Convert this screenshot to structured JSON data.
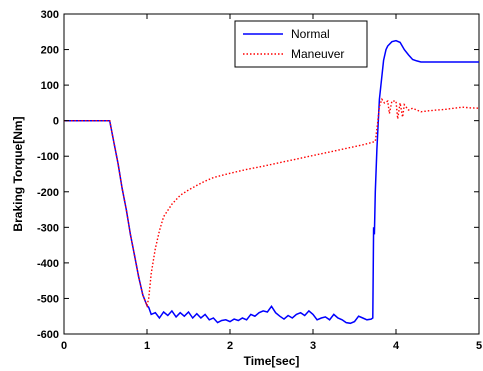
{
  "chart_data": {
    "type": "line",
    "title": "",
    "xlabel": "Time[sec]",
    "ylabel": "Braking Torque[Nm]",
    "xlim": [
      0,
      5
    ],
    "ylim": [
      -600,
      300
    ],
    "xticks": [
      0,
      1,
      2,
      3,
      4,
      5
    ],
    "yticks": [
      -600,
      -500,
      -400,
      -300,
      -200,
      -100,
      0,
      100,
      200,
      300
    ],
    "grid": false,
    "legend_position": "top-right",
    "series": [
      {
        "name": "Normal",
        "color": "#0000ff",
        "style": "solid",
        "points": [
          [
            0,
            0
          ],
          [
            0.5,
            0
          ],
          [
            0.55,
            0
          ],
          [
            0.6,
            -60
          ],
          [
            0.65,
            -120
          ],
          [
            0.7,
            -190
          ],
          [
            0.75,
            -250
          ],
          [
            0.8,
            -320
          ],
          [
            0.85,
            -380
          ],
          [
            0.9,
            -440
          ],
          [
            0.95,
            -490
          ],
          [
            1.0,
            -520
          ],
          [
            1.02,
            -525
          ],
          [
            1.05,
            -545
          ],
          [
            1.1,
            -540
          ],
          [
            1.15,
            -555
          ],
          [
            1.2,
            -538
          ],
          [
            1.25,
            -548
          ],
          [
            1.3,
            -535
          ],
          [
            1.35,
            -552
          ],
          [
            1.4,
            -540
          ],
          [
            1.45,
            -550
          ],
          [
            1.5,
            -538
          ],
          [
            1.55,
            -555
          ],
          [
            1.6,
            -543
          ],
          [
            1.65,
            -555
          ],
          [
            1.7,
            -545
          ],
          [
            1.75,
            -560
          ],
          [
            1.8,
            -555
          ],
          [
            1.85,
            -568
          ],
          [
            1.9,
            -562
          ],
          [
            1.95,
            -560
          ],
          [
            2.0,
            -565
          ],
          [
            2.05,
            -558
          ],
          [
            2.1,
            -562
          ],
          [
            2.15,
            -555
          ],
          [
            2.2,
            -560
          ],
          [
            2.25,
            -545
          ],
          [
            2.3,
            -550
          ],
          [
            2.35,
            -540
          ],
          [
            2.4,
            -535
          ],
          [
            2.45,
            -538
          ],
          [
            2.5,
            -522
          ],
          [
            2.55,
            -540
          ],
          [
            2.6,
            -550
          ],
          [
            2.65,
            -558
          ],
          [
            2.7,
            -548
          ],
          [
            2.75,
            -555
          ],
          [
            2.8,
            -545
          ],
          [
            2.85,
            -540
          ],
          [
            2.9,
            -548
          ],
          [
            2.95,
            -535
          ],
          [
            3.0,
            -545
          ],
          [
            3.05,
            -560
          ],
          [
            3.1,
            -555
          ],
          [
            3.15,
            -552
          ],
          [
            3.2,
            -560
          ],
          [
            3.25,
            -545
          ],
          [
            3.3,
            -555
          ],
          [
            3.35,
            -560
          ],
          [
            3.4,
            -568
          ],
          [
            3.45,
            -570
          ],
          [
            3.5,
            -565
          ],
          [
            3.55,
            -550
          ],
          [
            3.6,
            -555
          ],
          [
            3.65,
            -560
          ],
          [
            3.7,
            -558
          ],
          [
            3.72,
            -555
          ],
          [
            3.73,
            -300
          ],
          [
            3.74,
            -320
          ],
          [
            3.75,
            -200
          ],
          [
            3.77,
            -80
          ],
          [
            3.8,
            60
          ],
          [
            3.85,
            170
          ],
          [
            3.88,
            200
          ],
          [
            3.9,
            210
          ],
          [
            3.95,
            222
          ],
          [
            4.0,
            225
          ],
          [
            4.05,
            220
          ],
          [
            4.1,
            200
          ],
          [
            4.15,
            185
          ],
          [
            4.2,
            172
          ],
          [
            4.25,
            168
          ],
          [
            4.3,
            165
          ],
          [
            4.5,
            165
          ],
          [
            4.8,
            165
          ],
          [
            5.0,
            165
          ]
        ]
      },
      {
        "name": "Maneuver",
        "color": "#ff0000",
        "style": "dotted",
        "points": [
          [
            0,
            0
          ],
          [
            0.5,
            0
          ],
          [
            0.55,
            0
          ],
          [
            0.6,
            -60
          ],
          [
            0.65,
            -120
          ],
          [
            0.7,
            -190
          ],
          [
            0.75,
            -250
          ],
          [
            0.8,
            -320
          ],
          [
            0.85,
            -380
          ],
          [
            0.9,
            -440
          ],
          [
            0.95,
            -490
          ],
          [
            1.0,
            -520
          ],
          [
            1.02,
            -500
          ],
          [
            1.05,
            -430
          ],
          [
            1.1,
            -360
          ],
          [
            1.15,
            -310
          ],
          [
            1.2,
            -270
          ],
          [
            1.3,
            -235
          ],
          [
            1.4,
            -210
          ],
          [
            1.5,
            -195
          ],
          [
            1.6,
            -182
          ],
          [
            1.7,
            -170
          ],
          [
            1.8,
            -160
          ],
          [
            2.0,
            -148
          ],
          [
            2.2,
            -137
          ],
          [
            2.4,
            -128
          ],
          [
            2.6,
            -118
          ],
          [
            2.8,
            -108
          ],
          [
            3.0,
            -98
          ],
          [
            3.2,
            -88
          ],
          [
            3.4,
            -78
          ],
          [
            3.6,
            -68
          ],
          [
            3.7,
            -62
          ],
          [
            3.75,
            -58
          ],
          [
            3.78,
            -5
          ],
          [
            3.8,
            40
          ],
          [
            3.83,
            60
          ],
          [
            3.86,
            50
          ],
          [
            3.9,
            55
          ],
          [
            3.92,
            20
          ],
          [
            3.95,
            55
          ],
          [
            4.0,
            55
          ],
          [
            4.02,
            5
          ],
          [
            4.05,
            50
          ],
          [
            4.08,
            10
          ],
          [
            4.1,
            45
          ],
          [
            4.15,
            30
          ],
          [
            4.2,
            35
          ],
          [
            4.3,
            25
          ],
          [
            4.4,
            28
          ],
          [
            4.5,
            30
          ],
          [
            4.6,
            32
          ],
          [
            4.7,
            35
          ],
          [
            4.8,
            38
          ],
          [
            4.9,
            36
          ],
          [
            5.0,
            35
          ]
        ]
      }
    ]
  }
}
